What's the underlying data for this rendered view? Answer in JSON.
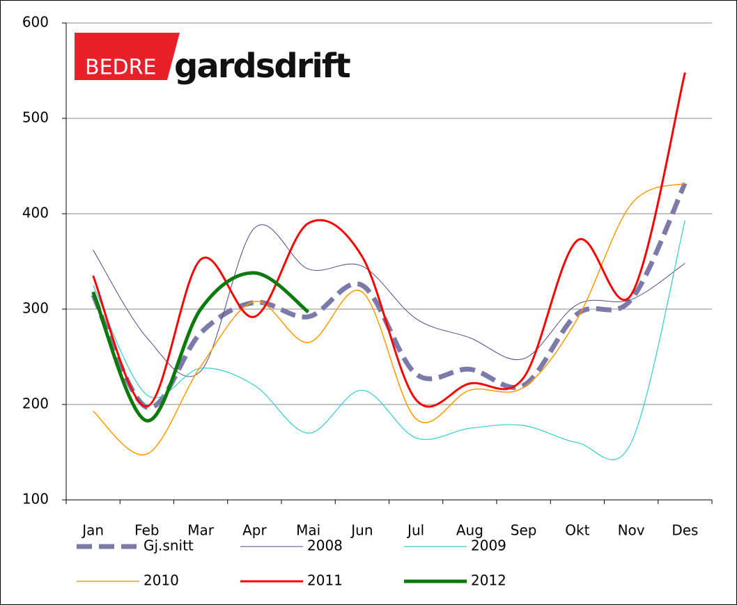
{
  "chart_data": {
    "type": "line",
    "logo": [
      "BEDRE",
      "gardsdrift"
    ],
    "categories": [
      "Jan",
      "Feb",
      "Mar",
      "Apr",
      "Mai",
      "Jun",
      "Jul",
      "Aug",
      "Sep",
      "Okt",
      "Nov",
      "Des"
    ],
    "series": [
      {
        "name": "Gj.snitt",
        "color": "#7b7aa8",
        "values": [
          315,
          197,
          275,
          307,
          292,
          325,
          232,
          237,
          220,
          295,
          310,
          432
        ]
      },
      {
        "name": "2008",
        "color": "#4a4a8a",
        "values": [
          362,
          270,
          235,
          385,
          342,
          345,
          290,
          270,
          248,
          305,
          310,
          348
        ]
      },
      {
        "name": "2009",
        "color": "#33cccc",
        "values": [
          325,
          210,
          238,
          220,
          170,
          215,
          165,
          175,
          178,
          160,
          160,
          393
        ]
      },
      {
        "name": "2010",
        "color": "#ff9900",
        "values": [
          193,
          148,
          240,
          308,
          265,
          318,
          185,
          215,
          218,
          290,
          410,
          432
        ]
      },
      {
        "name": "2011",
        "color": "#ff0000",
        "values": [
          335,
          198,
          352,
          292,
          390,
          355,
          205,
          222,
          228,
          372,
          315,
          548
        ]
      },
      {
        "name": "2012",
        "color": "#0a7a0a",
        "values": [
          318,
          183,
          300,
          338,
          297,
          null,
          null,
          null,
          null,
          null,
          null,
          null
        ]
      }
    ],
    "ylim": [
      100,
      600
    ],
    "yticks": [
      100,
      200,
      300,
      400,
      500,
      600
    ],
    "grid": true
  }
}
